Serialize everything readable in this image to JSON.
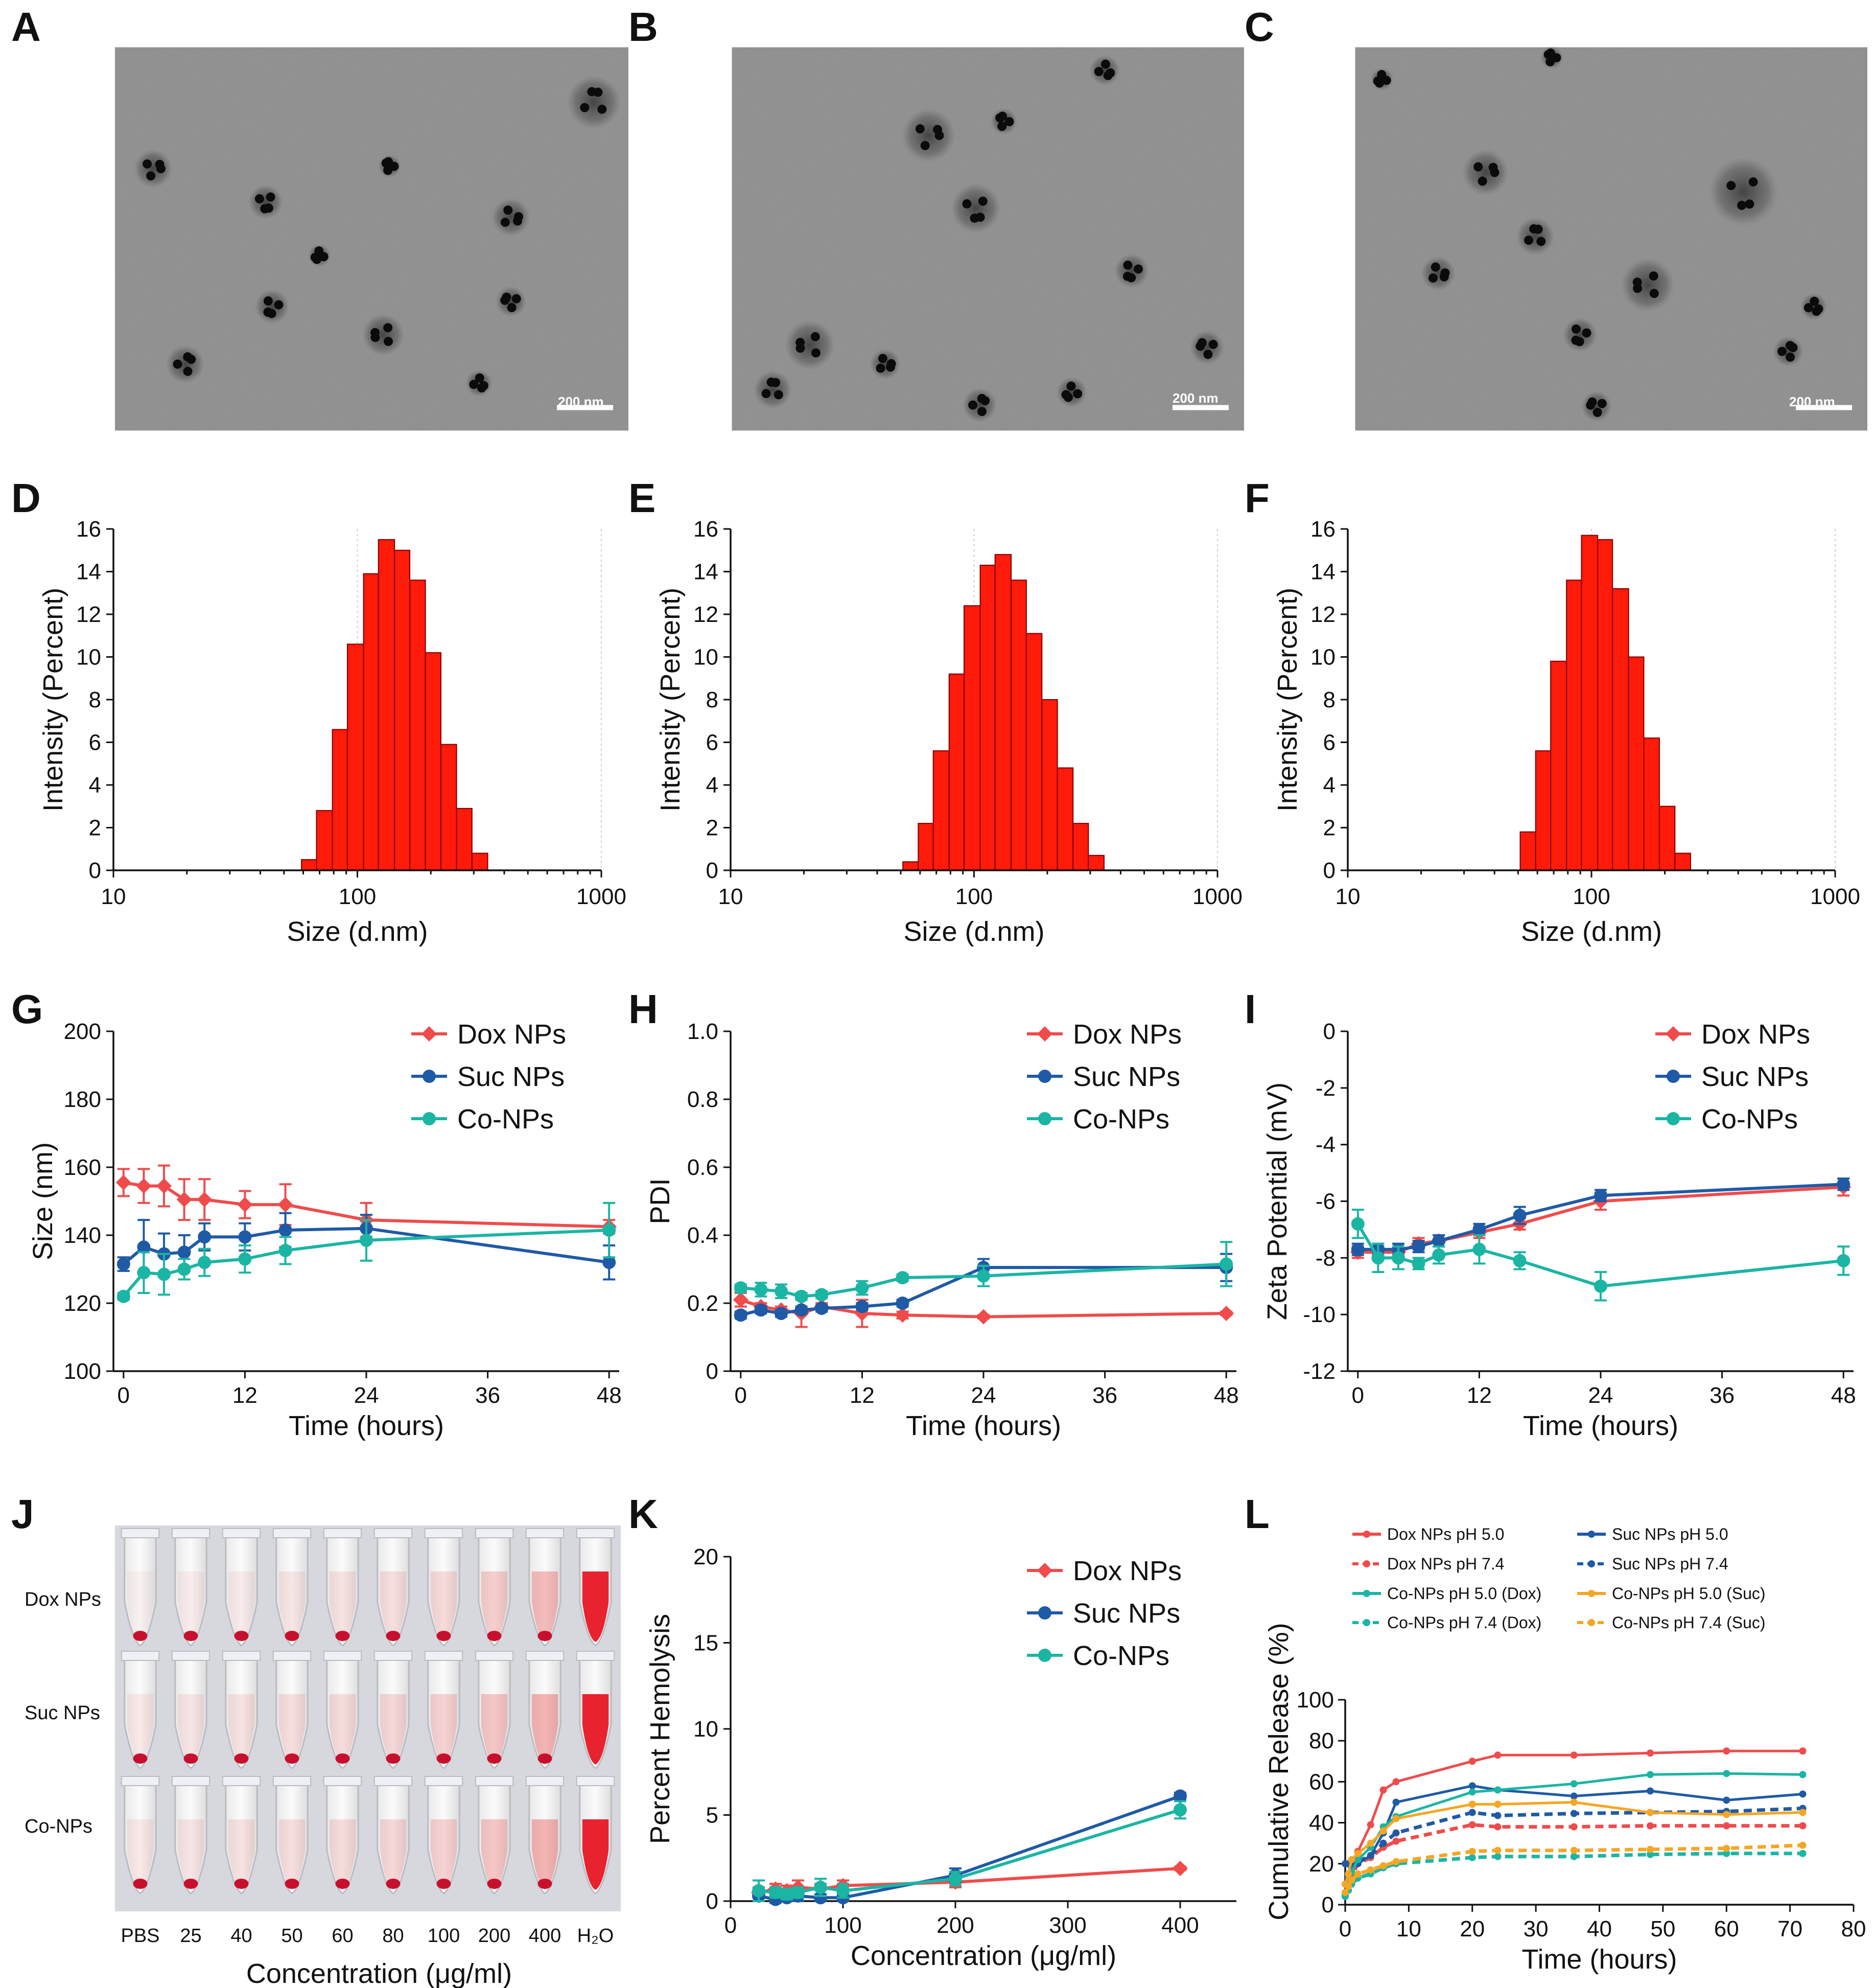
{
  "panels": {
    "A": "A",
    "B": "B",
    "C": "C",
    "D": "D",
    "E": "E",
    "F": "F",
    "G": "G",
    "H": "H",
    "I": "I",
    "J": "J",
    "K": "K",
    "L": "L"
  },
  "tem": {
    "scale_label": "200 nm"
  },
  "photo": {
    "row_labels": [
      "Dox NPs",
      "Suc NPs",
      "Co-NPs"
    ],
    "concentrations": [
      "PBS",
      "25",
      "40",
      "50",
      "60",
      "80",
      "100",
      "200",
      "400",
      "H₂O"
    ],
    "xlabel": "Concentration (μg/ml)"
  },
  "colors": {
    "red": "#f04b4b",
    "blue": "#1f5aa6",
    "teal": "#1bb5a4",
    "orange": "#f5a623",
    "bar": "#ff1a0a"
  },
  "chart_data": [
    {
      "id": "D",
      "type": "bar",
      "xscale": "log",
      "xlim": [
        10,
        1000
      ],
      "ylim": [
        0,
        16
      ],
      "xticks": [
        "10",
        "100",
        "1000"
      ],
      "yticks": [
        "0",
        "2",
        "4",
        "6",
        "8",
        "10",
        "12",
        "14",
        "16"
      ],
      "xlabel": "Size (d.nm)",
      "ylabel": "Intensity (Percent)",
      "bins": [
        [
          59,
          68,
          0.5
        ],
        [
          68,
          79,
          2.8
        ],
        [
          79,
          91,
          6.6
        ],
        [
          91,
          106,
          10.6
        ],
        [
          106,
          122,
          13.9
        ],
        [
          122,
          142,
          15.5
        ],
        [
          142,
          164,
          15.0
        ],
        [
          164,
          190,
          13.6
        ],
        [
          190,
          220,
          10.2
        ],
        [
          220,
          255,
          5.9
        ],
        [
          255,
          295,
          2.9
        ],
        [
          295,
          342,
          0.8
        ]
      ]
    },
    {
      "id": "E",
      "type": "bar",
      "xscale": "log",
      "xlim": [
        10,
        1000
      ],
      "ylim": [
        0,
        16
      ],
      "xticks": [
        "10",
        "100",
        "1000"
      ],
      "yticks": [
        "0",
        "2",
        "4",
        "6",
        "8",
        "10",
        "12",
        "14",
        "16"
      ],
      "xlabel": "Size (d.nm)",
      "ylabel": "Intensity (Percent)",
      "bins": [
        [
          51,
          59,
          0.4
        ],
        [
          59,
          68,
          2.2
        ],
        [
          68,
          79,
          5.6
        ],
        [
          79,
          91,
          9.2
        ],
        [
          91,
          106,
          12.4
        ],
        [
          106,
          122,
          14.3
        ],
        [
          122,
          142,
          14.8
        ],
        [
          142,
          164,
          13.6
        ],
        [
          164,
          190,
          11.1
        ],
        [
          190,
          220,
          8.0
        ],
        [
          220,
          255,
          4.8
        ],
        [
          255,
          295,
          2.2
        ],
        [
          295,
          342,
          0.7
        ]
      ]
    },
    {
      "id": "F",
      "type": "bar",
      "xscale": "log",
      "xlim": [
        10,
        1000
      ],
      "ylim": [
        0,
        16
      ],
      "xticks": [
        "10",
        "100",
        "1000"
      ],
      "yticks": [
        "0",
        "2",
        "4",
        "6",
        "8",
        "10",
        "12",
        "14",
        "16"
      ],
      "xlabel": "Size (d.nm)",
      "ylabel": "Intensity (Percent)",
      "bins": [
        [
          51,
          59,
          1.8
        ],
        [
          59,
          68,
          5.6
        ],
        [
          68,
          79,
          9.8
        ],
        [
          79,
          91,
          13.6
        ],
        [
          91,
          106,
          15.7
        ],
        [
          106,
          122,
          15.5
        ],
        [
          122,
          142,
          13.2
        ],
        [
          142,
          164,
          10.0
        ],
        [
          164,
          190,
          6.2
        ],
        [
          190,
          220,
          3.0
        ],
        [
          220,
          255,
          0.8
        ]
      ]
    },
    {
      "id": "G",
      "type": "line",
      "xlim": [
        -1,
        49
      ],
      "ylim": [
        100,
        200
      ],
      "xticks": [
        0,
        12,
        24,
        36,
        48
      ],
      "yticks": [
        100,
        120,
        140,
        160,
        180,
        200
      ],
      "xlabel": "Time (hours)",
      "ylabel": "Size (nm)",
      "series": [
        {
          "name": "Dox NPs",
          "color": "red",
          "marker": "diamond",
          "x": [
            0,
            2,
            4,
            6,
            8,
            12,
            16,
            24,
            48
          ],
          "y": [
            155.5,
            154.5,
            154.5,
            150.5,
            150.5,
            149.0,
            149.0,
            144.5,
            142.5
          ],
          "err": [
            4,
            5,
            6,
            6,
            6,
            4,
            6,
            5,
            2
          ]
        },
        {
          "name": "Suc NPs",
          "color": "blue",
          "marker": "circle",
          "x": [
            0,
            2,
            4,
            6,
            8,
            12,
            16,
            24,
            48
          ],
          "y": [
            131.5,
            136.5,
            134.5,
            135.0,
            139.5,
            139.5,
            141.5,
            142.0,
            132.0
          ],
          "err": [
            2,
            8,
            6,
            5,
            4,
            4,
            5,
            4,
            5
          ]
        },
        {
          "name": "Co-NPs",
          "color": "teal",
          "marker": "circle",
          "x": [
            0,
            2,
            4,
            6,
            8,
            12,
            16,
            24,
            48
          ],
          "y": [
            122.0,
            129.0,
            128.5,
            130.0,
            132.0,
            133.0,
            135.5,
            138.5,
            141.5
          ],
          "err": [
            1,
            6,
            6,
            3,
            4,
            4,
            4,
            6,
            8
          ]
        }
      ]
    },
    {
      "id": "H",
      "type": "line",
      "xlim": [
        -1,
        49
      ],
      "ylim": [
        0,
        1.0
      ],
      "xticks": [
        0,
        12,
        24,
        36,
        48
      ],
      "yticks": [
        "0",
        "0.2",
        "0.4",
        "0.6",
        "0.8",
        "1.0"
      ],
      "xlabel": "Time (hours)",
      "ylabel": "PDI",
      "series": [
        {
          "name": "Dox NPs",
          "color": "red",
          "marker": "diamond",
          "x": [
            0,
            2,
            4,
            6,
            8,
            12,
            16,
            24,
            48
          ],
          "y": [
            0.21,
            0.19,
            0.18,
            0.17,
            0.19,
            0.17,
            0.165,
            0.16,
            0.17
          ],
          "err": [
            0.02,
            0.01,
            0.01,
            0.04,
            0.01,
            0.04,
            0.01,
            0.005,
            0.005
          ]
        },
        {
          "name": "Suc NPs",
          "color": "blue",
          "marker": "circle",
          "x": [
            0,
            2,
            4,
            6,
            8,
            12,
            16,
            24,
            48
          ],
          "y": [
            0.165,
            0.18,
            0.17,
            0.18,
            0.185,
            0.19,
            0.2,
            0.305,
            0.305
          ],
          "err": [
            0.01,
            0.01,
            0.01,
            0.01,
            0.01,
            0.01,
            0.01,
            0.025,
            0.04
          ]
        },
        {
          "name": "Co-NPs",
          "color": "teal",
          "marker": "circle",
          "x": [
            0,
            2,
            4,
            6,
            8,
            12,
            16,
            24,
            48
          ],
          "y": [
            0.245,
            0.24,
            0.235,
            0.22,
            0.225,
            0.245,
            0.275,
            0.28,
            0.315
          ],
          "err": [
            0.01,
            0.02,
            0.02,
            0.01,
            0.01,
            0.02,
            0.01,
            0.03,
            0.065
          ]
        }
      ]
    },
    {
      "id": "I",
      "type": "line",
      "xlim": [
        -1,
        49
      ],
      "ylim": [
        -12,
        0
      ],
      "xticks": [
        0,
        12,
        24,
        36,
        48
      ],
      "yticks": [
        -12,
        -10,
        -8,
        -6,
        -4,
        -2,
        0
      ],
      "xlabel": "Time (hours)",
      "ylabel": "Zeta Potential (mV)",
      "series": [
        {
          "name": "Dox NPs",
          "color": "red",
          "marker": "diamond",
          "x": [
            0,
            2,
            4,
            6,
            8,
            12,
            16,
            24,
            48
          ],
          "y": [
            -7.8,
            -7.8,
            -7.8,
            -7.5,
            -7.4,
            -7.1,
            -6.8,
            -6.0,
            -5.5
          ],
          "err": [
            0.2,
            0.2,
            0.2,
            0.2,
            0.2,
            0.2,
            0.2,
            0.3,
            0.3
          ]
        },
        {
          "name": "Suc NPs",
          "color": "blue",
          "marker": "circle",
          "x": [
            0,
            2,
            4,
            6,
            8,
            12,
            16,
            24,
            48
          ],
          "y": [
            -7.7,
            -7.7,
            -7.7,
            -7.6,
            -7.4,
            -7.0,
            -6.5,
            -5.8,
            -5.4
          ],
          "err": [
            0.2,
            0.2,
            0.2,
            0.2,
            0.2,
            0.2,
            0.3,
            0.2,
            0.2
          ]
        },
        {
          "name": "Co-NPs",
          "color": "teal",
          "marker": "circle",
          "x": [
            0,
            2,
            4,
            6,
            8,
            12,
            16,
            24,
            48
          ],
          "y": [
            -6.8,
            -8.0,
            -8.0,
            -8.2,
            -7.9,
            -7.7,
            -8.1,
            -9.0,
            -8.1
          ],
          "err": [
            0.5,
            0.5,
            0.4,
            0.2,
            0.3,
            0.5,
            0.3,
            0.5,
            0.5
          ]
        }
      ]
    },
    {
      "id": "K",
      "type": "line",
      "xlim": [
        0,
        450
      ],
      "ylim": [
        0,
        20
      ],
      "xticks": [
        0,
        100,
        200,
        300,
        400
      ],
      "yticks": [
        0,
        5,
        10,
        15,
        20
      ],
      "xlabel": "Concentration (μg/ml)",
      "ylabel": "Percent Hemolysis",
      "series": [
        {
          "name": "Dox NPs",
          "color": "red",
          "marker": "diamond",
          "x": [
            25,
            40,
            50,
            60,
            80,
            100,
            200,
            400
          ],
          "y": [
            0.5,
            0.7,
            0.6,
            0.8,
            0.7,
            0.9,
            1.1,
            1.9
          ],
          "err": [
            0.3,
            0.3,
            0.3,
            0.4,
            0.3,
            0.3,
            0.3,
            0.1
          ]
        },
        {
          "name": "Suc NPs",
          "color": "blue",
          "marker": "circle",
          "x": [
            25,
            40,
            50,
            60,
            80,
            100,
            200,
            400
          ],
          "y": [
            0.3,
            0.1,
            0.2,
            0.3,
            0.2,
            0.2,
            1.5,
            6.1
          ],
          "err": [
            0.3,
            0.2,
            0.2,
            0.3,
            0.2,
            0.2,
            0.4,
            0.2
          ]
        },
        {
          "name": "Co-NPs",
          "color": "teal",
          "marker": "circle",
          "x": [
            25,
            40,
            50,
            60,
            80,
            100,
            200,
            400
          ],
          "y": [
            0.6,
            0.5,
            0.4,
            0.5,
            0.8,
            0.6,
            1.3,
            5.3
          ],
          "err": [
            0.6,
            0.3,
            0.3,
            0.3,
            0.5,
            0.4,
            0.4,
            0.5
          ]
        }
      ]
    },
    {
      "id": "L",
      "type": "line",
      "xlim": [
        0,
        80
      ],
      "ylim": [
        0,
        100
      ],
      "xticks": [
        0,
        10,
        20,
        30,
        40,
        50,
        60,
        70,
        80
      ],
      "yticks": [
        0,
        20,
        40,
        60,
        80,
        100
      ],
      "xlabel": "Time (hours)",
      "ylabel": "Cumulative Release (%)",
      "series": [
        {
          "name": "Dox NPs pH 5.0",
          "color": "red",
          "dash": false,
          "x": [
            0,
            0.5,
            1,
            2,
            4,
            6,
            8,
            20,
            24,
            36,
            48,
            60,
            72
          ],
          "y": [
            5,
            13,
            20,
            26,
            39,
            56,
            60,
            70,
            73,
            73,
            74,
            75,
            75
          ]
        },
        {
          "name": "Dox NPs pH 7.4",
          "color": "red",
          "dash": true,
          "x": [
            0,
            0.5,
            1,
            2,
            4,
            6,
            8,
            20,
            24,
            36,
            48,
            60,
            72
          ],
          "y": [
            5,
            10,
            14,
            20,
            23,
            28,
            31,
            39,
            38,
            38,
            38.5,
            38.5,
            38.5
          ]
        },
        {
          "name": "Suc NPs pH 5.0",
          "color": "blue",
          "dash": false,
          "x": [
            0,
            0.5,
            1,
            2,
            4,
            6,
            8,
            20,
            24,
            36,
            48,
            60,
            72
          ],
          "y": [
            20,
            20,
            20,
            20,
            24,
            35,
            50,
            58,
            56,
            53,
            55.5,
            51,
            54
          ]
        },
        {
          "name": "Suc NPs pH 7.4",
          "color": "blue",
          "dash": true,
          "x": [
            0,
            0.5,
            1,
            2,
            4,
            6,
            8,
            20,
            24,
            36,
            48,
            60,
            72
          ],
          "y": [
            10,
            14,
            18,
            21,
            24,
            30,
            35,
            45,
            43.5,
            44.5,
            45,
            45.5,
            47
          ]
        },
        {
          "name": "Co-NPs pH 5.0 (Dox)",
          "color": "teal",
          "dash": false,
          "x": [
            0,
            0.5,
            1,
            2,
            4,
            6,
            8,
            20,
            24,
            36,
            48,
            60,
            72
          ],
          "y": [
            5,
            10,
            16,
            22,
            28,
            38,
            43,
            55,
            56,
            59,
            63.5,
            64,
            63.5
          ]
        },
        {
          "name": "Co-NPs pH 7.4 (Dox)",
          "color": "teal",
          "dash": true,
          "x": [
            0,
            0.5,
            1,
            2,
            4,
            6,
            8,
            20,
            24,
            36,
            48,
            60,
            72
          ],
          "y": [
            4,
            7,
            10,
            13,
            15,
            18,
            20,
            23,
            23.5,
            23.5,
            24.5,
            25,
            25
          ]
        },
        {
          "name": "Co-NPs pH 5.0 (Suc)",
          "color": "orange",
          "dash": false,
          "x": [
            0,
            0.5,
            1,
            2,
            4,
            6,
            8,
            20,
            24,
            36,
            48,
            60,
            72
          ],
          "y": [
            10,
            15,
            22,
            25,
            30,
            36,
            42,
            49,
            49,
            50,
            45,
            44,
            45
          ]
        },
        {
          "name": "Co-NPs pH 7.4 (Suc)",
          "color": "orange",
          "dash": true,
          "x": [
            0,
            0.5,
            1,
            2,
            4,
            6,
            8,
            20,
            24,
            36,
            48,
            60,
            72
          ],
          "y": [
            6,
            9,
            12,
            15,
            17,
            19,
            21,
            26,
            26.5,
            26.5,
            27,
            27.5,
            29
          ]
        }
      ]
    }
  ]
}
